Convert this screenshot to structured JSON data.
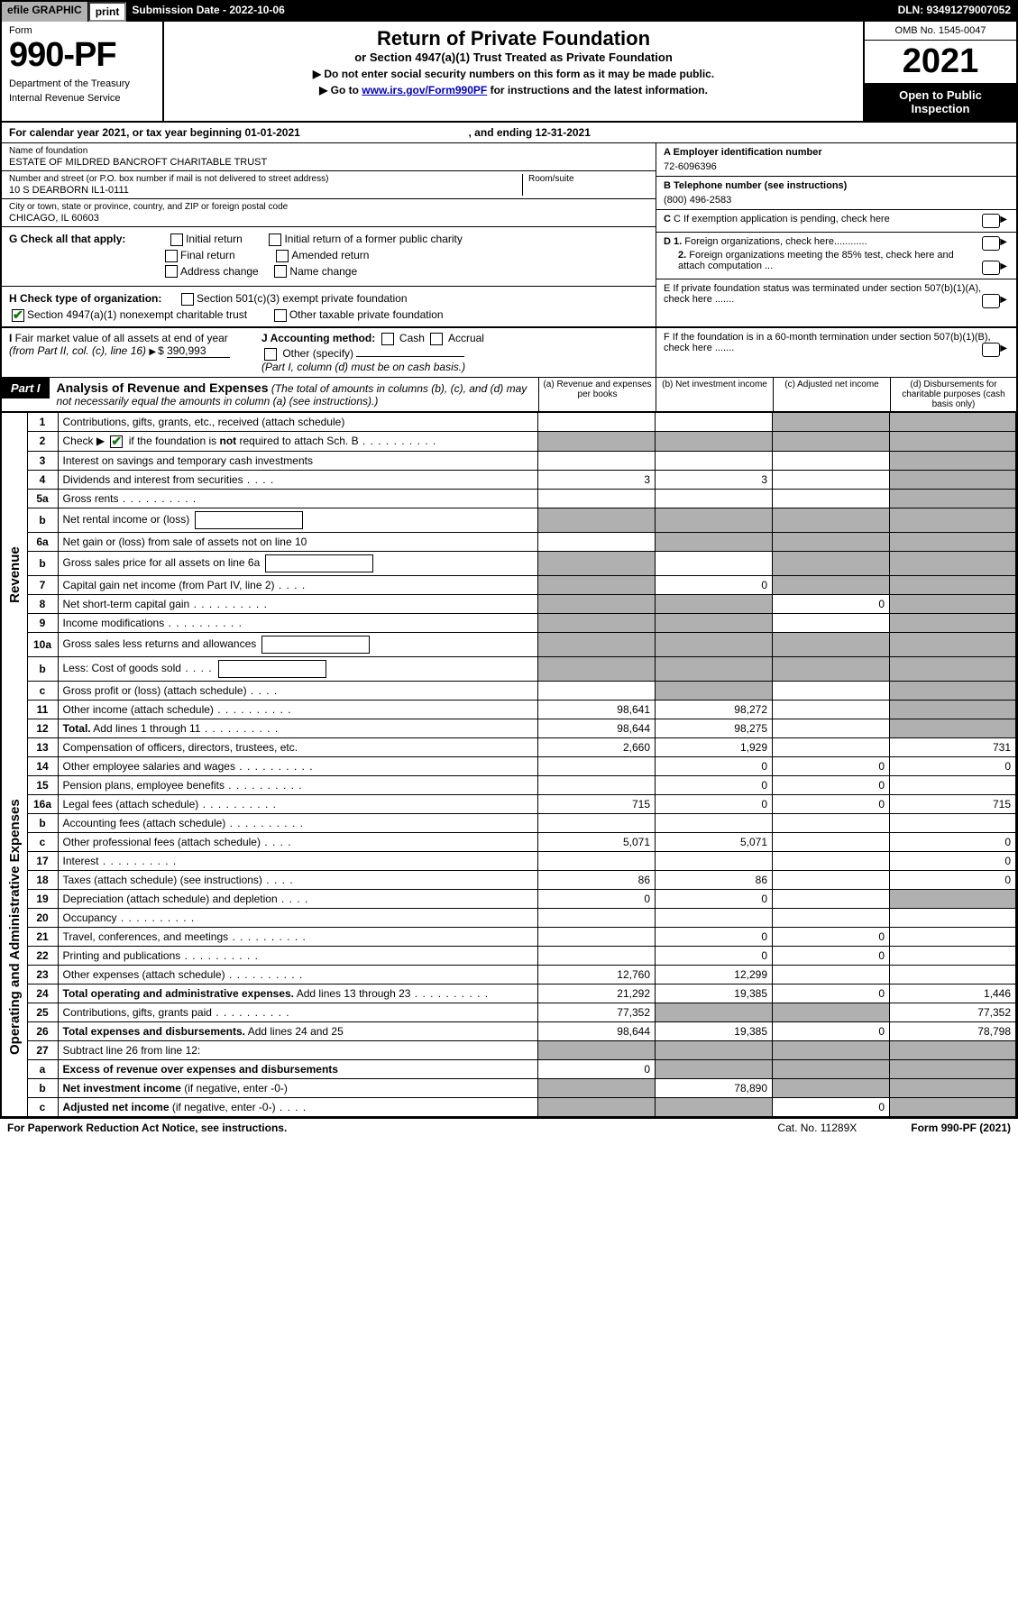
{
  "top": {
    "efile": "efile GRAPHIC",
    "print": "print",
    "subdate_label": "Submission Date - 2022-10-06",
    "dln": "DLN: 93491279007052"
  },
  "header": {
    "form_word": "Form",
    "form_no": "990-PF",
    "dept": "Department of the Treasury",
    "irs": "Internal Revenue Service",
    "title": "Return of Private Foundation",
    "subtitle": "or Section 4947(a)(1) Trust Treated as Private Foundation",
    "note1": "▶ Do not enter social security numbers on this form as it may be made public.",
    "note2_pre": "▶ Go to ",
    "note2_link": "www.irs.gov/Form990PF",
    "note2_post": " for instructions and the latest information.",
    "omb": "OMB No. 1545-0047",
    "year": "2021",
    "open": "Open to Public Inspection"
  },
  "cal": {
    "text": "For calendar year 2021, or tax year beginning 01-01-2021",
    "end": ", and ending 12-31-2021"
  },
  "foundation": {
    "name_lbl": "Name of foundation",
    "name": "ESTATE OF MILDRED BANCROFT CHARITABLE TRUST",
    "addr_lbl": "Number and street (or P.O. box number if mail is not delivered to street address)",
    "addr": "10 S DEARBORN IL1-0111",
    "room_lbl": "Room/suite",
    "city_lbl": "City or town, state or province, country, and ZIP or foreign postal code",
    "city": "CHICAGO, IL  60603",
    "ein_lbl": "A Employer identification number",
    "ein": "72-6096396",
    "tel_lbl": "B Telephone number (see instructions)",
    "tel": "(800) 496-2583",
    "c": "C If exemption application is pending, check here",
    "d1": "D 1. Foreign organizations, check here............",
    "d2": "2. Foreign organizations meeting the 85% test, check here and attach computation ...",
    "e": "E  If private foundation status was terminated under section 507(b)(1)(A), check here .......",
    "f": "F  If the foundation is in a 60-month termination under section 507(b)(1)(B), check here .......",
    "g_label": "G Check all that apply:",
    "g_opts": [
      "Initial return",
      "Initial return of a former public charity",
      "Final return",
      "Amended return",
      "Address change",
      "Name change"
    ],
    "h_label": "H Check type of organization:",
    "h_opts": [
      "Section 501(c)(3) exempt private foundation",
      "Section 4947(a)(1) nonexempt charitable trust",
      "Other taxable private foundation"
    ],
    "i_label": "I Fair market value of all assets at end of year (from Part II, col. (c), line 16)",
    "i_val": "390,993",
    "j_label": "J Accounting method:",
    "j_opts": [
      "Cash",
      "Accrual",
      "Other (specify)"
    ],
    "j_note": "(Part I, column (d) must be on cash basis.)"
  },
  "part1": {
    "tag": "Part I",
    "title": "Analysis of Revenue and Expenses",
    "title_note": "(The total of amounts in columns (b), (c), and (d) may not necessarily equal the amounts in column (a) (see instructions).)",
    "cols": {
      "a": "(a)   Revenue and expenses per books",
      "b": "(b)   Net investment income",
      "c": "(c)   Adjusted net income",
      "d": "(d)  Disbursements for charitable purposes (cash basis only)"
    }
  },
  "sides": {
    "revenue": "Revenue",
    "expenses": "Operating and Administrative Expenses"
  },
  "rows": [
    {
      "n": "1",
      "d": "Contributions, gifts, grants, etc., received (attach schedule)",
      "a": "",
      "b": "",
      "c": "S",
      "dd": "S"
    },
    {
      "n": "2",
      "d": "Check ▶ [✔] if the foundation is <b>not</b> required to attach Sch. B",
      "dots": true,
      "a": "S",
      "b": "S",
      "c": "S",
      "dd": "S"
    },
    {
      "n": "3",
      "d": "Interest on savings and temporary cash investments",
      "a": "",
      "b": "",
      "c": "",
      "dd": "S"
    },
    {
      "n": "4",
      "d": "Dividends and interest from securities",
      "dots": "short",
      "a": "3",
      "b": "3",
      "c": "",
      "dd": "S"
    },
    {
      "n": "5a",
      "d": "Gross rents",
      "dots": true,
      "a": "",
      "b": "",
      "c": "",
      "dd": "S"
    },
    {
      "n": "b",
      "d": "Net rental income or (loss)",
      "box": true,
      "a": "S",
      "b": "S",
      "c": "S",
      "dd": "S"
    },
    {
      "n": "6a",
      "d": "Net gain or (loss) from sale of assets not on line 10",
      "a": "",
      "b": "S",
      "c": "S",
      "dd": "S"
    },
    {
      "n": "b",
      "d": "Gross sales price for all assets on line 6a",
      "box": true,
      "a": "S",
      "b": "",
      "c": "S",
      "dd": "S"
    },
    {
      "n": "7",
      "d": "Capital gain net income (from Part IV, line 2)",
      "dots": "short",
      "a": "S",
      "b": "0",
      "c": "S",
      "dd": "S"
    },
    {
      "n": "8",
      "d": "Net short-term capital gain",
      "dots": true,
      "a": "S",
      "b": "S",
      "c": "0",
      "dd": "S"
    },
    {
      "n": "9",
      "d": "Income modifications",
      "dots": true,
      "a": "S",
      "b": "S",
      "c": "",
      "dd": "S"
    },
    {
      "n": "10a",
      "d": "Gross sales less returns and allowances",
      "box": true,
      "a": "S",
      "b": "S",
      "c": "S",
      "dd": "S"
    },
    {
      "n": "b",
      "d": "Less: Cost of goods sold",
      "dots": "short",
      "box": true,
      "a": "S",
      "b": "S",
      "c": "S",
      "dd": "S"
    },
    {
      "n": "c",
      "d": "Gross profit or (loss) (attach schedule)",
      "dots": "short",
      "a": "",
      "b": "S",
      "c": "",
      "dd": "S"
    },
    {
      "n": "11",
      "d": "Other income (attach schedule)",
      "dots": true,
      "a": "98,641",
      "b": "98,272",
      "c": "",
      "dd": "S"
    },
    {
      "n": "12",
      "d": "<b>Total.</b> Add lines 1 through 11",
      "dots": true,
      "a": "98,644",
      "b": "98,275",
      "c": "",
      "dd": "S"
    },
    {
      "n": "13",
      "d": "Compensation of officers, directors, trustees, etc.",
      "a": "2,660",
      "b": "1,929",
      "c": "",
      "dd": "731"
    },
    {
      "n": "14",
      "d": "Other employee salaries and wages",
      "dots": true,
      "a": "",
      "b": "0",
      "c": "0",
      "dd": "0"
    },
    {
      "n": "15",
      "d": "Pension plans, employee benefits",
      "dots": true,
      "a": "",
      "b": "0",
      "c": "0",
      "dd": ""
    },
    {
      "n": "16a",
      "d": "Legal fees (attach schedule)",
      "dots": true,
      "a": "715",
      "b": "0",
      "c": "0",
      "dd": "715"
    },
    {
      "n": "b",
      "d": "Accounting fees (attach schedule)",
      "dots": true,
      "a": "",
      "b": "",
      "c": "",
      "dd": ""
    },
    {
      "n": "c",
      "d": "Other professional fees (attach schedule)",
      "dots": "short",
      "a": "5,071",
      "b": "5,071",
      "c": "",
      "dd": "0"
    },
    {
      "n": "17",
      "d": "Interest",
      "dots": true,
      "a": "",
      "b": "",
      "c": "",
      "dd": "0"
    },
    {
      "n": "18",
      "d": "Taxes (attach schedule) (see instructions)",
      "dots": "short",
      "a": "86",
      "b": "86",
      "c": "",
      "dd": "0"
    },
    {
      "n": "19",
      "d": "Depreciation (attach schedule) and depletion",
      "dots": "short",
      "a": "0",
      "b": "0",
      "c": "",
      "dd": "S"
    },
    {
      "n": "20",
      "d": "Occupancy",
      "dots": true,
      "a": "",
      "b": "",
      "c": "",
      "dd": ""
    },
    {
      "n": "21",
      "d": "Travel, conferences, and meetings",
      "dots": true,
      "a": "",
      "b": "0",
      "c": "0",
      "dd": ""
    },
    {
      "n": "22",
      "d": "Printing and publications",
      "dots": true,
      "a": "",
      "b": "0",
      "c": "0",
      "dd": ""
    },
    {
      "n": "23",
      "d": "Other expenses (attach schedule)",
      "dots": true,
      "a": "12,760",
      "b": "12,299",
      "c": "",
      "dd": ""
    },
    {
      "n": "24",
      "d": "<b>Total operating and administrative expenses.</b> Add lines 13 through 23",
      "dots": true,
      "a": "21,292",
      "b": "19,385",
      "c": "0",
      "dd": "1,446"
    },
    {
      "n": "25",
      "d": "Contributions, gifts, grants paid",
      "dots": true,
      "a": "77,352",
      "b": "S",
      "c": "S",
      "dd": "77,352"
    },
    {
      "n": "26",
      "d": "<b>Total expenses and disbursements.</b> Add lines 24 and 25",
      "a": "98,644",
      "b": "19,385",
      "c": "0",
      "dd": "78,798"
    },
    {
      "n": "27",
      "d": "Subtract line 26 from line 12:",
      "a": "S",
      "b": "S",
      "c": "S",
      "dd": "S"
    },
    {
      "n": "a",
      "d": "<b>Excess of revenue over expenses and disbursements</b>",
      "a": "0",
      "b": "S",
      "c": "S",
      "dd": "S"
    },
    {
      "n": "b",
      "d": "<b>Net investment income</b> (if negative, enter -0-)",
      "a": "S",
      "b": "78,890",
      "c": "S",
      "dd": "S"
    },
    {
      "n": "c",
      "d": "<b>Adjusted net income</b> (if negative, enter -0-)",
      "dots": "short",
      "a": "S",
      "b": "S",
      "c": "0",
      "dd": "S"
    }
  ],
  "footer": {
    "left": "For Paperwork Reduction Act Notice, see instructions.",
    "mid": "Cat. No. 11289X",
    "right": "Form 990-PF (2021)"
  }
}
